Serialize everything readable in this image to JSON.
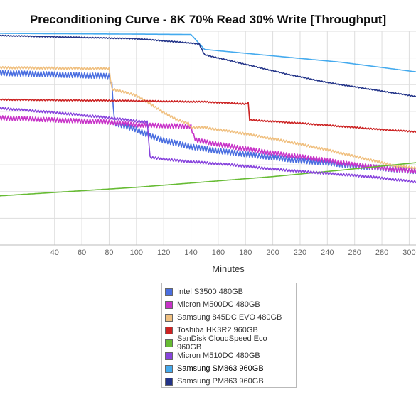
{
  "chart_data": {
    "type": "line",
    "title": "Preconditioning Curve - 8K 70% Read 30% Write [Throughput]",
    "xlabel": "Minutes",
    "ylabel": "",
    "xlim": [
      0,
      305
    ],
    "x_ticks": [
      40,
      60,
      80,
      100,
      120,
      140,
      160,
      180,
      200,
      220,
      240,
      260,
      280,
      300
    ],
    "ylim": [
      0,
      10
    ],
    "grid": true,
    "legend_position": "bottom",
    "series": [
      {
        "name": "Intel S3500 480GB",
        "color": "#4a6ee0",
        "points": [
          [
            0,
            8.05
          ],
          [
            80,
            7.9
          ],
          [
            82,
            7.5
          ],
          [
            84,
            5.7
          ],
          [
            90,
            5.6
          ],
          [
            100,
            5.4
          ],
          [
            110,
            5.1
          ],
          [
            120,
            4.9
          ],
          [
            130,
            4.75
          ],
          [
            140,
            4.6
          ],
          [
            160,
            4.4
          ],
          [
            180,
            4.25
          ],
          [
            200,
            4.1
          ],
          [
            220,
            3.95
          ],
          [
            240,
            3.85
          ],
          [
            260,
            3.7
          ],
          [
            280,
            3.6
          ],
          [
            305,
            3.45
          ]
        ],
        "noise": 0.12
      },
      {
        "name": "Micron M500DC 480GB",
        "color": "#c833c8",
        "points": [
          [
            0,
            5.95
          ],
          [
            80,
            5.75
          ],
          [
            100,
            5.62
          ],
          [
            140,
            5.55
          ],
          [
            142,
            5.1
          ],
          [
            144,
            4.9
          ],
          [
            170,
            4.6
          ],
          [
            200,
            4.3
          ],
          [
            230,
            4.05
          ],
          [
            260,
            3.75
          ],
          [
            280,
            3.6
          ],
          [
            305,
            3.45
          ]
        ],
        "noise": 0.1
      },
      {
        "name": "Samsung 845DC EVO 480GB",
        "color": "#f0c080",
        "points": [
          [
            0,
            8.3
          ],
          [
            80,
            8.25
          ],
          [
            82,
            7.3
          ],
          [
            100,
            7.0
          ],
          [
            110,
            6.6
          ],
          [
            120,
            6.2
          ],
          [
            130,
            5.85
          ],
          [
            138,
            5.7
          ],
          [
            140,
            5.5
          ],
          [
            150,
            5.5
          ],
          [
            180,
            5.2
          ],
          [
            210,
            4.85
          ],
          [
            240,
            4.45
          ],
          [
            270,
            4.0
          ],
          [
            290,
            3.7
          ],
          [
            305,
            3.6
          ]
        ],
        "noise": 0.05
      },
      {
        "name": "Toshiba HK3R2 960GB",
        "color": "#cc2222",
        "points": [
          [
            0,
            6.8
          ],
          [
            90,
            6.75
          ],
          [
            150,
            6.7
          ],
          [
            180,
            6.6
          ],
          [
            182,
            6.65
          ],
          [
            183,
            5.85
          ],
          [
            220,
            5.7
          ],
          [
            260,
            5.5
          ],
          [
            280,
            5.4
          ],
          [
            305,
            5.3
          ]
        ],
        "noise": 0.03
      },
      {
        "name": "SanDisk CloudSpeed Eco 960GB",
        "color": "#66bb33",
        "points": [
          [
            0,
            2.3
          ],
          [
            50,
            2.5
          ],
          [
            100,
            2.7
          ],
          [
            150,
            2.95
          ],
          [
            200,
            3.2
          ],
          [
            250,
            3.5
          ],
          [
            305,
            3.85
          ]
        ],
        "noise": 0
      },
      {
        "name": "Micron M510DC 480GB",
        "color": "#8844dd",
        "points": [
          [
            0,
            6.4
          ],
          [
            40,
            6.2
          ],
          [
            80,
            5.95
          ],
          [
            100,
            5.8
          ],
          [
            108,
            5.75
          ],
          [
            110,
            4.1
          ],
          [
            130,
            3.95
          ],
          [
            150,
            3.85
          ],
          [
            170,
            3.75
          ],
          [
            200,
            3.55
          ],
          [
            240,
            3.35
          ],
          [
            270,
            3.2
          ],
          [
            305,
            2.95
          ]
        ],
        "noise": 0.05
      },
      {
        "name": "Samsung SM863 960GB",
        "color": "#44aaee",
        "points": [
          [
            0,
            9.9
          ],
          [
            140,
            9.85
          ],
          [
            150,
            9.15
          ],
          [
            200,
            8.85
          ],
          [
            250,
            8.55
          ],
          [
            305,
            8.1
          ]
        ],
        "noise": 0
      },
      {
        "name": "Samsung PM863 960GB",
        "color": "#223388",
        "points": [
          [
            0,
            9.8
          ],
          [
            100,
            9.65
          ],
          [
            140,
            9.45
          ],
          [
            146,
            9.4
          ],
          [
            150,
            8.9
          ],
          [
            180,
            8.45
          ],
          [
            210,
            8.0
          ],
          [
            240,
            7.6
          ],
          [
            270,
            7.3
          ],
          [
            305,
            6.95
          ]
        ],
        "noise": 0.02
      }
    ]
  },
  "legend": {
    "items": [
      {
        "label": "Intel S3500 480GB",
        "color": "#4a6ee0"
      },
      {
        "label": "Micron M500DC 480GB",
        "color": "#c833c8"
      },
      {
        "label": "Samsung 845DC EVO 480GB",
        "color": "#f0c080"
      },
      {
        "label": "Toshiba HK3R2 960GB",
        "color": "#cc2222"
      },
      {
        "label": "SanDisk CloudSpeed Eco 960GB",
        "color": "#66bb33"
      },
      {
        "label": "Micron M510DC 480GB",
        "color": "#8844dd"
      },
      {
        "label": "Samsung SM863 960GB",
        "color": "#44aaee"
      },
      {
        "label": "Samsung PM863 960GB",
        "color": "#223388"
      }
    ]
  }
}
